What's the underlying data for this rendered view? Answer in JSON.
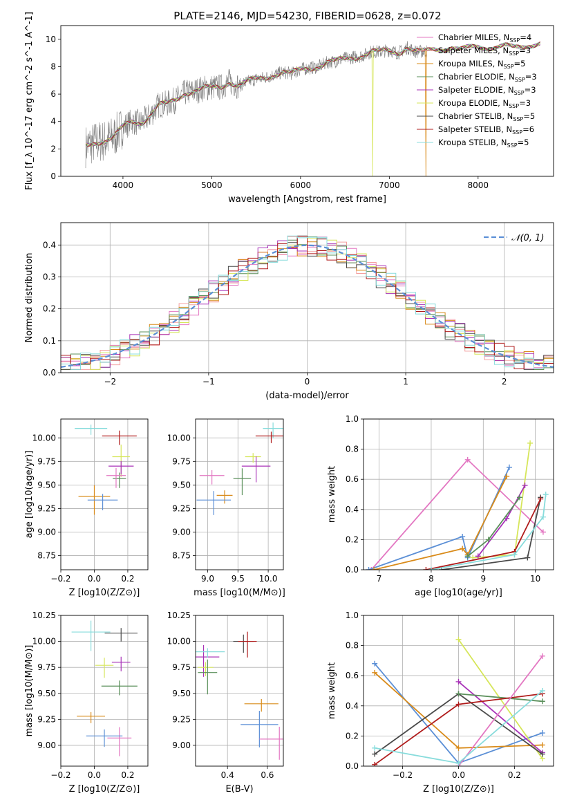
{
  "figure": {
    "title": "PLATE=2146, MJD=54230, FIBERID=0628, z=0.072"
  },
  "series_styles": [
    {
      "name": "Chabrier MILES",
      "color": "#e377c2"
    },
    {
      "name": "Salpeter MILES",
      "color": "#f4a0a0"
    },
    {
      "name": "Kroupa MILES",
      "color": "#d98b1a"
    },
    {
      "name": "Chabrier ELODIE",
      "color": "#5a8f5a"
    },
    {
      "name": "Salpeter ELODIE",
      "color": "#a832b8"
    },
    {
      "name": "Kroupa ELODIE",
      "color": "#d6e65a"
    },
    {
      "name": "Chabrier STELIB",
      "color": "#4a4a4a"
    },
    {
      "name": "Salpeter STELIB",
      "color": "#b01c1c"
    },
    {
      "name": "Kroupa STELIB",
      "color": "#88dcdc"
    }
  ],
  "chart_data": [
    {
      "id": "spectrum",
      "type": "line",
      "xlabel": "wavelength [Angstrom, rest frame]",
      "ylabel": "Flux [f_λ 10^-17 erg cm^-2 s^-1 A^-1]",
      "xlim": [
        3300,
        8850
      ],
      "ylim": [
        0,
        11
      ],
      "xticks": [
        4000,
        5000,
        6000,
        7000,
        8000
      ],
      "yticks": [
        0,
        2,
        4,
        6,
        8,
        10
      ],
      "legend_position": "top-right",
      "data_color": "#808080",
      "legend": [
        {
          "label": "Chabrier MILES, N",
          "sub": "SSP",
          "tail": "=4",
          "color": "#e377c2"
        },
        {
          "label": "Salpeter MILES, N",
          "sub": "SSP",
          "tail": "=3",
          "color": "#f4a0a0"
        },
        {
          "label": "Kroupa MILES, N",
          "sub": "SSP",
          "tail": "=5",
          "color": "#d98b1a"
        },
        {
          "label": "Chabrier ELODIE, N",
          "sub": "SSP",
          "tail": "=3",
          "color": "#5a8f5a"
        },
        {
          "label": "Salpeter ELODIE, N",
          "sub": "SSP",
          "tail": "=3",
          "color": "#a832b8"
        },
        {
          "label": "Kroupa ELODIE, N",
          "sub": "SSP",
          "tail": "=3",
          "color": "#d6e65a"
        },
        {
          "label": "Chabrier STELIB, N",
          "sub": "SSP",
          "tail": "=5",
          "color": "#4a4a4a"
        },
        {
          "label": "Salpeter STELIB, N",
          "sub": "SSP",
          "tail": "=6",
          "color": "#b01c1c"
        },
        {
          "label": "Kroupa STELIB, N",
          "sub": "SSP",
          "tail": "=5",
          "color": "#88dcdc"
        }
      ],
      "continuum": {
        "x": [
          3580,
          3700,
          3800,
          3900,
          4000,
          4100,
          4200,
          4300,
          4400,
          4500,
          4600,
          4700,
          4800,
          4900,
          5000,
          5100,
          5200,
          5300,
          5400,
          5500,
          5600,
          5700,
          5800,
          5900,
          6000,
          6100,
          6200,
          6300,
          6400,
          6500,
          6600,
          6700,
          6800,
          6900,
          7000,
          7100,
          7200,
          7300,
          7400,
          7500,
          7600,
          7700,
          7800,
          7900,
          8000,
          8100,
          8200,
          8300,
          8400,
          8500,
          8600,
          8700
        ],
        "y": [
          2.2,
          2.5,
          2.6,
          2.9,
          3.6,
          4.0,
          3.9,
          4.4,
          5.2,
          5.3,
          5.6,
          6.1,
          6.2,
          6.4,
          6.5,
          6.5,
          6.9,
          6.6,
          6.9,
          7.1,
          7.2,
          7.4,
          7.6,
          7.5,
          7.8,
          7.9,
          8.0,
          8.3,
          8.4,
          8.6,
          8.7,
          8.8,
          9.1,
          9.1,
          9.2,
          9.0,
          9.4,
          9.1,
          9.1,
          9.3,
          9.3,
          9.4,
          9.2,
          9.4,
          9.5,
          9.4,
          9.4,
          9.5,
          9.4,
          9.5,
          9.6,
          9.7
        ]
      }
    },
    {
      "id": "residuals",
      "type": "histogram",
      "xlabel": "(data-model)/error",
      "ylabel": "Normed distribution",
      "xlim": [
        -2.5,
        2.5
      ],
      "ylim": [
        0,
        0.47
      ],
      "xticks": [
        -2,
        -1,
        0,
        1,
        2
      ],
      "yticks": [
        0.0,
        0.1,
        0.2,
        0.3,
        0.4
      ],
      "grid": true,
      "legend_position": "top-right",
      "legend": [
        {
          "label": "𝒩(0, 1)",
          "color": "#5b8fd6"
        }
      ],
      "bin_width": 0.1
    },
    {
      "id": "age_vs_Z",
      "type": "errorbar",
      "xlabel": "Z [log10(Z/Z⊙)]",
      "ylabel": "age [log10(age/yr)]",
      "xlim": [
        -0.2,
        0.32
      ],
      "ylim": [
        8.6,
        10.2
      ],
      "xticks": [
        -0.2,
        0.0,
        0.2
      ],
      "yticks": [
        8.75,
        9.0,
        9.25,
        9.5,
        9.75,
        10.0
      ],
      "grid": true,
      "points": [
        {
          "x": -0.02,
          "y": 10.1,
          "color": "#88dcdc"
        },
        {
          "x": 0.15,
          "y": 10.02,
          "color": "#b01c1c"
        },
        {
          "x": 0.16,
          "y": 9.8,
          "color": "#d6e65a"
        },
        {
          "x": 0.16,
          "y": 9.7,
          "color": "#a832b8"
        },
        {
          "x": 0.15,
          "y": 9.57,
          "color": "#5a8f5a"
        },
        {
          "x": 0.13,
          "y": 9.6,
          "color": "#e377c2"
        },
        {
          "x": -0.0,
          "y": 9.38,
          "color": "#d98b1a"
        },
        {
          "x": 0.05,
          "y": 9.34,
          "color": "#5b8fd6"
        }
      ]
    },
    {
      "id": "age_vs_mass",
      "type": "errorbar",
      "xlabel": "mass [log10(M/M⊙)]",
      "ylabel": "",
      "xlim": [
        8.8,
        10.25
      ],
      "ylim": [
        8.6,
        10.2
      ],
      "xticks": [
        9.0,
        9.5,
        10.0
      ],
      "yticks": [
        8.75,
        9.0,
        9.25,
        9.5,
        9.75,
        10.0
      ],
      "grid": true,
      "points": [
        {
          "x": 10.08,
          "y": 10.1,
          "color": "#88dcdc"
        },
        {
          "x": 10.05,
          "y": 10.02,
          "color": "#b01c1c"
        },
        {
          "x": 9.75,
          "y": 9.8,
          "color": "#d6e65a"
        },
        {
          "x": 9.8,
          "y": 9.7,
          "color": "#a832b8"
        },
        {
          "x": 9.57,
          "y": 9.57,
          "color": "#5a8f5a"
        },
        {
          "x": 9.07,
          "y": 9.6,
          "color": "#e377c2"
        },
        {
          "x": 9.28,
          "y": 9.39,
          "color": "#d98b1a"
        },
        {
          "x": 9.1,
          "y": 9.34,
          "color": "#5b8fd6"
        }
      ]
    },
    {
      "id": "weight_vs_age",
      "type": "line",
      "xlabel": "age [log10(age/yr)]",
      "ylabel": "mass weight",
      "xlim": [
        6.7,
        10.35
      ],
      "ylim": [
        0,
        1
      ],
      "xticks": [
        7,
        8,
        9,
        10
      ],
      "yticks": [
        0.0,
        0.2,
        0.4,
        0.6,
        0.8,
        1.0
      ],
      "grid": true,
      "series": [
        {
          "color": "#e377c2",
          "points": [
            [
              6.85,
              0.0
            ],
            [
              8.7,
              0.73
            ],
            [
              10.15,
              0.25
            ]
          ]
        },
        {
          "color": "#5b8fd6",
          "points": [
            [
              6.8,
              0.0
            ],
            [
              8.6,
              0.22
            ],
            [
              8.7,
              0.08
            ],
            [
              9.5,
              0.68
            ]
          ]
        },
        {
          "color": "#d98b1a",
          "points": [
            [
              6.9,
              0.0
            ],
            [
              8.6,
              0.14
            ],
            [
              8.7,
              0.1
            ],
            [
              9.45,
              0.62
            ]
          ]
        },
        {
          "color": "#d6e65a",
          "points": [
            [
              8.8,
              0.08
            ],
            [
              9.6,
              0.1
            ],
            [
              9.9,
              0.84
            ]
          ]
        },
        {
          "color": "#a832b8",
          "points": [
            [
              8.9,
              0.09
            ],
            [
              9.45,
              0.34
            ],
            [
              9.8,
              0.56
            ]
          ]
        },
        {
          "color": "#5a8f5a",
          "points": [
            [
              8.7,
              0.09
            ],
            [
              9.1,
              0.2
            ],
            [
              9.7,
              0.48
            ]
          ]
        },
        {
          "color": "#4a4a4a",
          "points": [
            [
              8.2,
              0.0
            ],
            [
              9.85,
              0.08
            ],
            [
              10.1,
              0.48
            ]
          ]
        },
        {
          "color": "#b01c1c",
          "points": [
            [
              7.9,
              0.0
            ],
            [
              9.6,
              0.12
            ],
            [
              10.1,
              0.47
            ]
          ]
        },
        {
          "color": "#88dcdc",
          "points": [
            [
              8.0,
              0.0
            ],
            [
              9.6,
              0.1
            ],
            [
              10.15,
              0.35
            ],
            [
              10.2,
              0.5
            ]
          ]
        }
      ]
    },
    {
      "id": "mass_vs_Z",
      "type": "errorbar",
      "xlabel": "Z [log10(Z/Z⊙)]",
      "ylabel": "mass [log10(M/M⊙)]",
      "xlim": [
        -0.2,
        0.32
      ],
      "ylim": [
        8.8,
        10.25
      ],
      "xticks": [
        -0.2,
        0.0,
        0.2
      ],
      "yticks": [
        9.0,
        9.25,
        9.5,
        9.75,
        10.0,
        10.25
      ],
      "grid": true,
      "points": [
        {
          "x": -0.02,
          "y": 10.09,
          "color": "#88dcdc"
        },
        {
          "x": 0.16,
          "y": 10.08,
          "color": "#4a4a4a"
        },
        {
          "x": 0.16,
          "y": 9.8,
          "color": "#a832b8"
        },
        {
          "x": 0.06,
          "y": 9.77,
          "color": "#d6e65a"
        },
        {
          "x": 0.15,
          "y": 9.57,
          "color": "#5a8f5a"
        },
        {
          "x": 0.15,
          "y": 9.07,
          "color": "#e377c2"
        },
        {
          "x": -0.02,
          "y": 9.28,
          "color": "#d98b1a"
        },
        {
          "x": 0.06,
          "y": 9.09,
          "color": "#5b8fd6"
        }
      ]
    },
    {
      "id": "mass_vs_EBV",
      "type": "errorbar",
      "xlabel": "E(B-V)",
      "ylabel": "",
      "xlim": [
        0.24,
        0.68
      ],
      "ylim": [
        8.8,
        10.25
      ],
      "xticks": [
        0.4,
        0.6
      ],
      "yticks": [
        9.0,
        9.25,
        9.5,
        9.75,
        10.0,
        10.25
      ],
      "grid": true,
      "points": [
        {
          "x": 0.48,
          "y": 10.0,
          "color": "#4a4a4a"
        },
        {
          "x": 0.5,
          "y": 10.0,
          "color": "#b01c1c"
        },
        {
          "x": 0.28,
          "y": 9.85,
          "color": "#a832b8"
        },
        {
          "x": 0.3,
          "y": 9.9,
          "color": "#88dcdc"
        },
        {
          "x": 0.29,
          "y": 9.75,
          "color": "#d6e65a"
        },
        {
          "x": 0.3,
          "y": 9.7,
          "color": "#5a8f5a"
        },
        {
          "x": 0.57,
          "y": 9.4,
          "color": "#d98b1a"
        },
        {
          "x": 0.56,
          "y": 9.2,
          "color": "#5b8fd6"
        },
        {
          "x": 0.66,
          "y": 9.06,
          "color": "#e377c2"
        }
      ]
    },
    {
      "id": "weight_vs_Z",
      "type": "line",
      "xlabel": "Z [log10(Z/Z⊙)]",
      "ylabel": "mass weight",
      "xlim": [
        -0.34,
        0.34
      ],
      "ylim": [
        0,
        1
      ],
      "xticks": [
        -0.2,
        0.0,
        0.2
      ],
      "yticks": [
        0.0,
        0.2,
        0.4,
        0.6,
        0.8,
        1.0
      ],
      "grid": true,
      "series": [
        {
          "color": "#5b8fd6",
          "points": [
            [
              -0.3,
              0.68
            ],
            [
              0.0,
              0.02
            ],
            [
              0.3,
              0.22
            ]
          ]
        },
        {
          "color": "#d98b1a",
          "points": [
            [
              -0.3,
              0.62
            ],
            [
              0.0,
              0.12
            ],
            [
              0.3,
              0.14
            ]
          ]
        },
        {
          "color": "#d6e65a",
          "points": [
            [
              0.0,
              0.84
            ],
            [
              0.3,
              0.05
            ]
          ]
        },
        {
          "color": "#a832b8",
          "points": [
            [
              0.0,
              0.56
            ],
            [
              0.3,
              0.09
            ]
          ]
        },
        {
          "color": "#4a4a4a",
          "points": [
            [
              -0.3,
              0.08
            ],
            [
              0.0,
              0.48
            ],
            [
              0.3,
              0.08
            ]
          ]
        },
        {
          "color": "#5a8f5a",
          "points": [
            [
              0.0,
              0.48
            ],
            [
              0.3,
              0.43
            ]
          ]
        },
        {
          "color": "#b01c1c",
          "points": [
            [
              -0.3,
              0.01
            ],
            [
              0.0,
              0.41
            ],
            [
              0.3,
              0.48
            ]
          ]
        },
        {
          "color": "#e377c2",
          "points": [
            [
              0.0,
              0.0
            ],
            [
              0.3,
              0.73
            ]
          ]
        },
        {
          "color": "#88dcdc",
          "points": [
            [
              -0.3,
              0.12
            ],
            [
              0.0,
              0.02
            ],
            [
              0.3,
              0.5
            ]
          ]
        }
      ]
    }
  ]
}
